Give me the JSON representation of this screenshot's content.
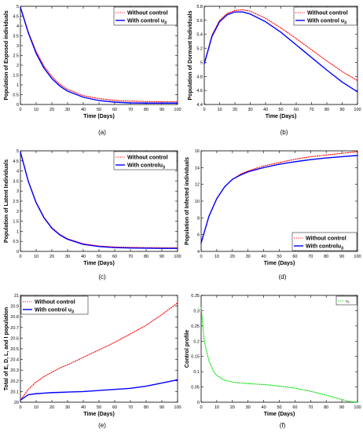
{
  "figure": {
    "panels": [
      "(a)",
      "(b)",
      "(c)",
      "(d)",
      "(e)",
      "(f)"
    ]
  },
  "chart_data": [
    {
      "type": "line",
      "panel": "(a)",
      "title": "",
      "xlabel": "Time (Days)",
      "ylabel": "Population of Exposed individuals",
      "xlim": [
        0,
        100
      ],
      "ylim": [
        0,
        5
      ],
      "xticks": [
        0,
        10,
        20,
        30,
        40,
        50,
        60,
        70,
        80,
        90,
        100
      ],
      "yticks": [
        0,
        0.5,
        1,
        1.5,
        2,
        2.5,
        3,
        3.5,
        4,
        4.5,
        5
      ],
      "ytick_labels": [
        "0",
        "0.5",
        "1",
        "1.5",
        "2",
        "2.5",
        "3",
        "3.5",
        "4",
        "4.5",
        "5"
      ],
      "legend": "top-right",
      "series": [
        {
          "name": "Without control",
          "color": "#ff0000",
          "style": "dotted",
          "x": [
            0,
            5,
            10,
            15,
            20,
            25,
            30,
            40,
            50,
            60,
            70,
            80,
            90,
            100
          ],
          "y": [
            4.95,
            3.7,
            2.7,
            1.95,
            1.42,
            1.03,
            0.77,
            0.45,
            0.3,
            0.21,
            0.17,
            0.15,
            0.14,
            0.14
          ]
        },
        {
          "name": "With control u",
          "name_sub": "3",
          "color": "#0000ff",
          "style": "solid",
          "x": [
            0,
            5,
            10,
            15,
            20,
            25,
            30,
            40,
            50,
            60,
            70,
            80,
            90,
            100
          ],
          "y": [
            4.95,
            3.65,
            2.6,
            1.85,
            1.32,
            0.94,
            0.68,
            0.37,
            0.2,
            0.12,
            0.08,
            0.07,
            0.07,
            0.07
          ]
        }
      ]
    },
    {
      "type": "line",
      "panel": "(b)",
      "title": "",
      "xlabel": "Time (Days)",
      "ylabel": "Population of Dormant Individuals",
      "xlim": [
        0,
        100
      ],
      "ylim": [
        4.4,
        5.8
      ],
      "xticks": [
        0,
        10,
        20,
        30,
        40,
        50,
        60,
        70,
        80,
        90,
        100
      ],
      "yticks": [
        4.4,
        4.6,
        4.8,
        5.0,
        5.2,
        5.4,
        5.6,
        5.8
      ],
      "ytick_labels": [
        "4.4",
        "4.6",
        "4.8",
        "5",
        "5.2",
        "5.4",
        "5.6",
        "5.8"
      ],
      "legend": "top-right",
      "series": [
        {
          "name": "Without control",
          "color": "#ff0000",
          "style": "dotted",
          "x": [
            0,
            5,
            10,
            15,
            20,
            25,
            30,
            40,
            50,
            60,
            70,
            80,
            90,
            100
          ],
          "y": [
            4.98,
            5.39,
            5.6,
            5.7,
            5.74,
            5.75,
            5.73,
            5.63,
            5.49,
            5.34,
            5.18,
            5.02,
            4.87,
            4.74
          ]
        },
        {
          "name": "With control u",
          "name_sub": "3",
          "color": "#0000ff",
          "style": "solid",
          "x": [
            0,
            5,
            10,
            15,
            20,
            25,
            30,
            40,
            50,
            60,
            70,
            80,
            90,
            100
          ],
          "y": [
            4.98,
            5.37,
            5.58,
            5.68,
            5.72,
            5.72,
            5.69,
            5.58,
            5.43,
            5.25,
            5.07,
            4.89,
            4.72,
            4.58
          ]
        }
      ]
    },
    {
      "type": "line",
      "panel": "(c)",
      "title": "",
      "xlabel": "Time (Days)",
      "ylabel": "Population of Latent Individuals",
      "xlim": [
        0,
        100
      ],
      "ylim": [
        0,
        5
      ],
      "xticks": [
        0,
        10,
        20,
        30,
        40,
        50,
        60,
        70,
        80,
        90,
        100
      ],
      "yticks": [
        0,
        0.5,
        1,
        1.5,
        2,
        2.5,
        3,
        3.5,
        4,
        4.5,
        5
      ],
      "ytick_labels": [
        "0",
        "0.5",
        "1",
        "1.5",
        "2",
        "2.5",
        "3",
        "3.5",
        "4",
        "4.5",
        "5"
      ],
      "legend": "top-right",
      "series": [
        {
          "name": "Without control",
          "color": "#ff0000",
          "style": "dotted",
          "x": [
            0,
            5,
            10,
            15,
            20,
            25,
            30,
            40,
            50,
            60,
            70,
            80,
            90,
            100
          ],
          "y": [
            4.95,
            3.5,
            2.45,
            1.7,
            1.18,
            0.85,
            0.63,
            0.38,
            0.27,
            0.22,
            0.2,
            0.19,
            0.18,
            0.18
          ]
        },
        {
          "name": "With controlu",
          "name_sub": "3",
          "color": "#0000ff",
          "style": "solid",
          "x": [
            0,
            5,
            10,
            15,
            20,
            25,
            30,
            40,
            50,
            60,
            70,
            80,
            90,
            100
          ],
          "y": [
            4.95,
            3.48,
            2.42,
            1.67,
            1.15,
            0.82,
            0.6,
            0.35,
            0.24,
            0.19,
            0.17,
            0.16,
            0.15,
            0.15
          ]
        }
      ]
    },
    {
      "type": "line",
      "panel": "(d)",
      "title": "",
      "xlabel": "Time (Days)",
      "ylabel": "Population of Infected individuals",
      "xlim": [
        0,
        100
      ],
      "ylim": [
        4,
        16
      ],
      "xticks": [
        0,
        10,
        20,
        30,
        40,
        50,
        60,
        70,
        80,
        90,
        100
      ],
      "yticks": [
        4,
        6,
        8,
        10,
        12,
        14,
        16
      ],
      "ytick_labels": [
        "4",
        "6",
        "8",
        "10",
        "12",
        "14",
        "16"
      ],
      "legend": "bottom-right",
      "series": [
        {
          "name": "Without control",
          "color": "#ff0000",
          "style": "dotted",
          "x": [
            0,
            5,
            10,
            15,
            20,
            25,
            30,
            40,
            50,
            60,
            70,
            80,
            90,
            100
          ],
          "y": [
            5.0,
            8.2,
            10.3,
            11.7,
            12.6,
            13.2,
            13.6,
            14.2,
            14.6,
            15.0,
            15.3,
            15.5,
            15.7,
            15.9
          ]
        },
        {
          "name": "With controlu",
          "name_sub": "3",
          "color": "#0000ff",
          "style": "solid",
          "x": [
            0,
            5,
            10,
            15,
            20,
            25,
            30,
            40,
            50,
            60,
            70,
            80,
            90,
            100
          ],
          "y": [
            5.0,
            8.2,
            10.3,
            11.7,
            12.6,
            13.1,
            13.5,
            14.0,
            14.4,
            14.7,
            14.95,
            15.15,
            15.3,
            15.45
          ]
        }
      ]
    },
    {
      "type": "line",
      "panel": "(e)",
      "title": "",
      "xlabel": "Time (Days)",
      "ylabel": "Total of E, D, L, and I population",
      "xlim": [
        0,
        100
      ],
      "ylim": [
        20,
        21
      ],
      "xticks": [
        0,
        10,
        20,
        30,
        40,
        50,
        60,
        70,
        80,
        90,
        100
      ],
      "yticks": [
        20,
        20.1,
        20.2,
        20.3,
        20.4,
        20.5,
        20.6,
        20.7,
        20.8,
        20.9,
        21
      ],
      "ytick_labels": [
        "20",
        "20.1",
        "20.2",
        "20.3",
        "20.4",
        "20.5",
        "20.6",
        "20.7",
        "20.8",
        "20.9",
        "21"
      ],
      "legend": "top-left",
      "series": [
        {
          "name": "Without control",
          "color": "#ff0000",
          "style": "dotted",
          "x": [
            0,
            5,
            10,
            15,
            20,
            25,
            30,
            40,
            50,
            60,
            70,
            80,
            90,
            100
          ],
          "y": [
            20.02,
            20.12,
            20.19,
            20.24,
            20.28,
            20.32,
            20.35,
            20.42,
            20.49,
            20.56,
            20.64,
            20.72,
            20.82,
            20.93
          ]
        },
        {
          "name": "With control u",
          "name_sub": "3",
          "color": "#0000ff",
          "style": "solid",
          "x": [
            0,
            5,
            10,
            15,
            20,
            25,
            30,
            40,
            50,
            60,
            70,
            80,
            90,
            100
          ],
          "y": [
            20.02,
            20.07,
            20.08,
            20.085,
            20.09,
            20.092,
            20.095,
            20.1,
            20.11,
            20.12,
            20.13,
            20.15,
            20.18,
            20.21
          ]
        }
      ]
    },
    {
      "type": "line",
      "panel": "(f)",
      "title": "",
      "xlabel": "Time (Days)",
      "ylabel": "Control profile",
      "xlim": [
        0,
        100
      ],
      "ylim": [
        0,
        0.35
      ],
      "xticks": [
        0,
        10,
        20,
        30,
        40,
        50,
        60,
        70,
        80,
        90,
        100
      ],
      "yticks": [
        0,
        0.05,
        0.1,
        0.15,
        0.2,
        0.25,
        0.3,
        0.35
      ],
      "ytick_labels": [
        "0",
        "0.05",
        "0.1",
        "0.15",
        "0.2",
        "0.25",
        "0.3",
        "0.35"
      ],
      "legend": "top-right",
      "series": [
        {
          "name": "u",
          "name_sub": "3",
          "color": "#00e000",
          "style": "dotted",
          "x": [
            0,
            2,
            5,
            8,
            10,
            15,
            20,
            25,
            30,
            40,
            50,
            60,
            70,
            80,
            90,
            95,
            100
          ],
          "y": [
            0.31,
            0.2,
            0.135,
            0.1,
            0.088,
            0.072,
            0.066,
            0.063,
            0.061,
            0.058,
            0.053,
            0.046,
            0.036,
            0.023,
            0.009,
            0.002,
            0.0
          ]
        }
      ]
    }
  ]
}
